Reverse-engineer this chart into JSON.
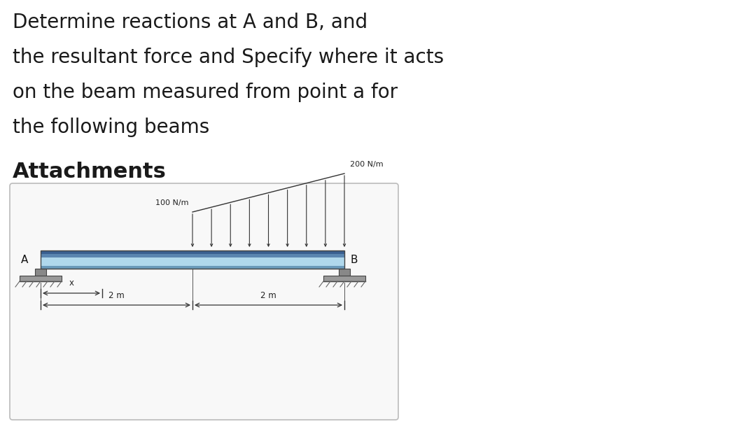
{
  "bg_color": "#ffffff",
  "title_lines": [
    "Determine reactions at A and B, and",
    "the resultant force and Specify where it acts",
    "on the beam measured from point a for",
    "the following beams"
  ],
  "attachments_label": "Attachments",
  "beam_color_fill": "#a8cfe0",
  "beam_color_top": "#3a5f8a",
  "beam_color_mid": "#6a9aba",
  "load_label_left": "100 N/m",
  "load_label_right": "200 N/m",
  "label_A": "A",
  "label_B": "B",
  "label_x": "x",
  "dim_left": "2 m",
  "dim_right": "2 m",
  "text_color": "#1a1a1a",
  "title_fontsize": 20,
  "attach_fontsize": 22
}
